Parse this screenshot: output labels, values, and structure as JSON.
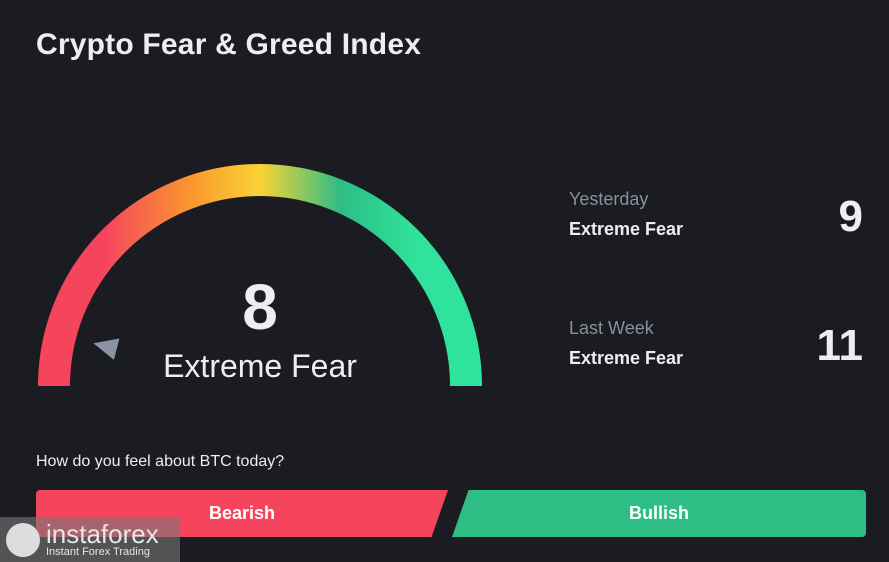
{
  "header": {
    "title": "Crypto Fear & Greed Index"
  },
  "gauge": {
    "value": 8,
    "value_text": "8",
    "classification": "Extreme Fear",
    "min": 0,
    "max": 100,
    "colors": [
      "#f5455d",
      "#f99a2d",
      "#f9d335",
      "#2ebd85",
      "#2fe39c"
    ],
    "pointer_color": "#8a93a3"
  },
  "history": [
    {
      "label": "Yesterday",
      "classification": "Extreme Fear",
      "value": "9"
    },
    {
      "label": "Last Week",
      "classification": "Extreme Fear",
      "value": "11"
    }
  ],
  "poll": {
    "question": "How do you feel about BTC today?",
    "bearish_label": "Bearish",
    "bullish_label": "Bullish",
    "bearish_color": "#f5455d",
    "bullish_color": "#2ebd85"
  },
  "watermark": {
    "name": "instaforex",
    "tagline": "Instant Forex Trading"
  }
}
